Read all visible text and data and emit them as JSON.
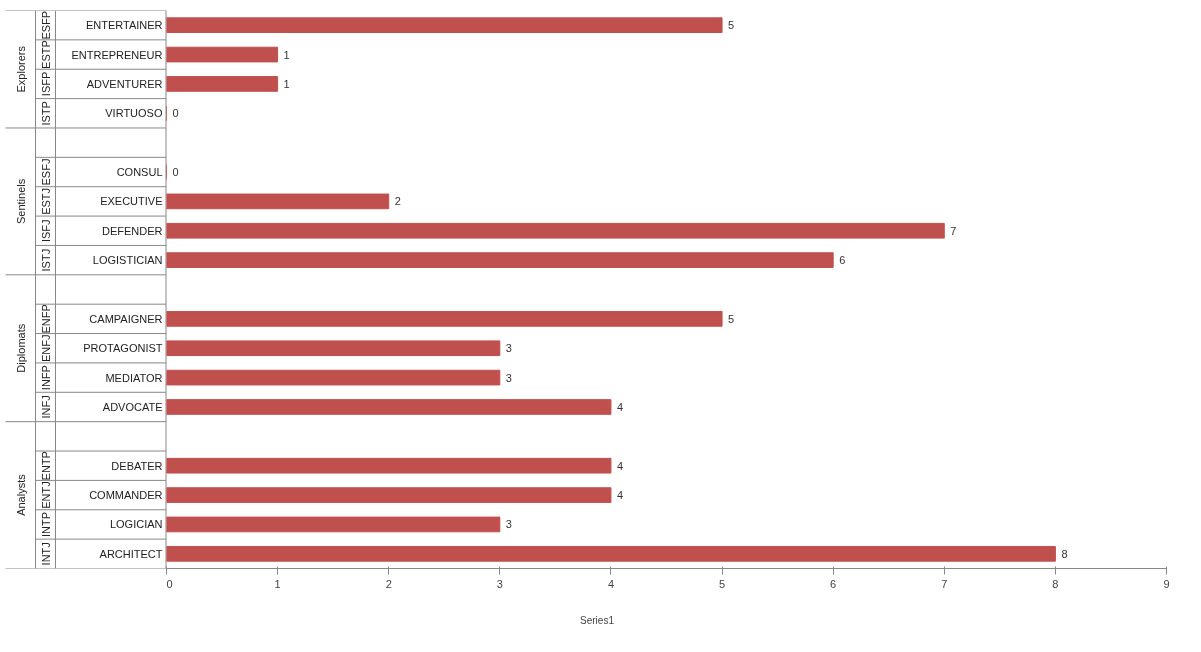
{
  "chart_data": {
    "type": "bar",
    "orientation": "horizontal",
    "categories": [
      "ENTERTAINER",
      "ENTREPRENEUR",
      "ADVENTURER",
      "VIRTUOSO",
      null,
      "CONSUL",
      "EXECUTIVE",
      "DEFENDER",
      "LOGISTICIAN",
      null,
      "CAMPAIGNER",
      "PROTAGONIST",
      "MEDIATOR",
      "ADVOCATE",
      null,
      "DEBATER",
      "COMMANDER",
      "LOGICIAN",
      "ARCHITECT"
    ],
    "series": [
      {
        "name": "Series1",
        "color": "#c0504d",
        "values": [
          5,
          1,
          1,
          0,
          null,
          0,
          2,
          7,
          6,
          null,
          5,
          3,
          3,
          4,
          null,
          4,
          4,
          3,
          8
        ]
      }
    ],
    "annotations": [
      "ESFP",
      "ESTP",
      "ISFP",
      "ISTP",
      "ESFJ",
      "ESTJ",
      "ISFJ",
      "ISTJ",
      "ENFP",
      "ENFJ",
      "INFP",
      "INFJ",
      "ENTP",
      "ENTJ",
      "INTP",
      "INTJ",
      "Explorers",
      "Sentinels",
      "Diplomats",
      "Analysts"
    ],
    "xlim": [
      0,
      9
    ],
    "xticks": [
      0,
      1,
      2,
      3,
      4,
      5,
      6,
      7,
      8,
      9
    ],
    "data_labels": true,
    "grid": false,
    "legend": "bottom"
  }
}
